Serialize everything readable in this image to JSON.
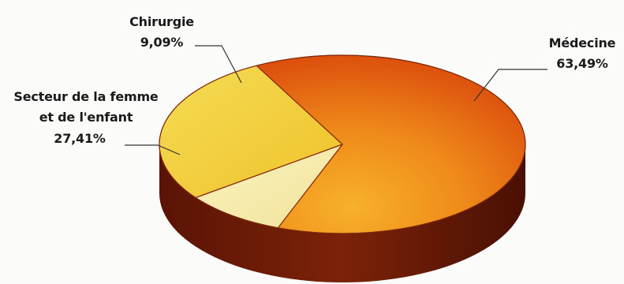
{
  "chart_data": {
    "type": "pie",
    "slices": [
      {
        "label": "Médecine",
        "value": 63.49,
        "value_text": "63,49%",
        "color": "#e0560e"
      },
      {
        "label": "Chirurgie",
        "value": 9.09,
        "value_text": "9,09%",
        "color": "#f6eba6"
      },
      {
        "label": "Secteur de la femme et de l'enfant",
        "label_lines": [
          "Secteur de la femme",
          "et de l'enfant"
        ],
        "value": 27.41,
        "value_text": "27,41%",
        "color": "#f2d23e"
      }
    ]
  }
}
